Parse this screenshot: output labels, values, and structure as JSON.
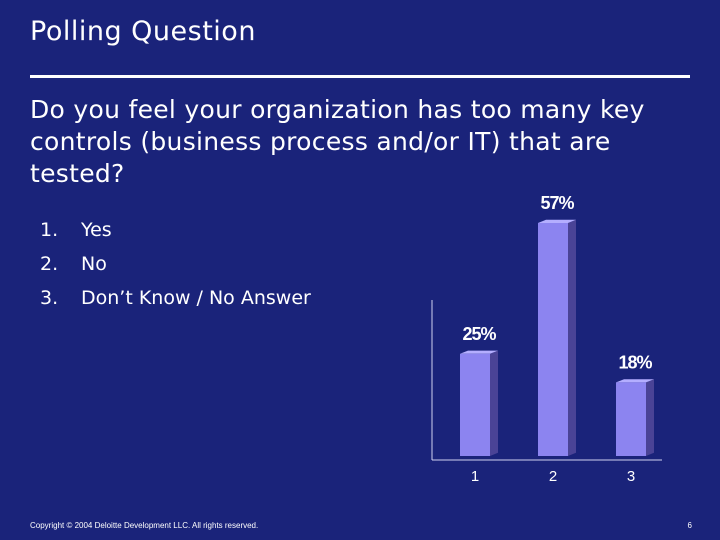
{
  "slide": {
    "title": "Polling Question",
    "question": "Do you feel your organization has too many key controls (business process and/or IT) that are tested?",
    "options": [
      {
        "number": "1.",
        "label": "Yes"
      },
      {
        "number": "2.",
        "label": "No"
      },
      {
        "number": "3.",
        "label": "Don’t Know / No Answer"
      }
    ],
    "footer": "Copyright © 2004 Deloitte Development LLC. All rights reserved.",
    "page_number": "6"
  },
  "chart_data": {
    "type": "bar",
    "categories": [
      "1",
      "2",
      "3"
    ],
    "values": [
      25,
      57,
      18
    ],
    "value_labels": [
      "25%",
      "57%",
      "18%"
    ],
    "ylim": [
      0,
      60
    ],
    "grid": false,
    "bar_color": "#8c84f0",
    "bar_side_color": "#4a4396",
    "axis_color": "#d0d0f0"
  }
}
